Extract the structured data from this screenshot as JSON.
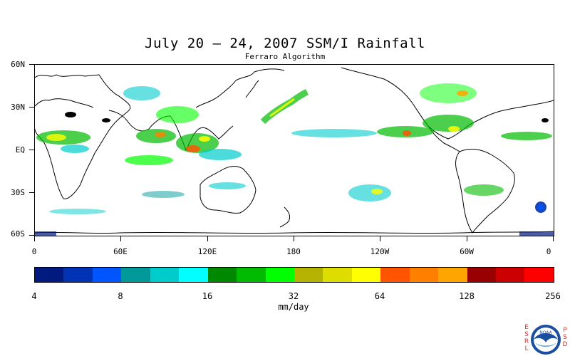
{
  "title": "July 20 – 24, 2007 SSM/I Rainfall",
  "subtitle": "Ferraro Algorithm",
  "lat_labels": [
    "60N",
    "30N",
    "EQ",
    "30S",
    "60S"
  ],
  "lon_labels": [
    "0",
    "60E",
    "120E",
    "180",
    "120W",
    "60W",
    "0"
  ],
  "colorbar": {
    "colors": [
      "#001a80",
      "#0033b3",
      "#0055ff",
      "#009999",
      "#00cccc",
      "#00ffff",
      "#008800",
      "#00bb00",
      "#00ff00",
      "#b3b300",
      "#dddd00",
      "#ffff00",
      "#ff5500",
      "#ff8000",
      "#ffa500",
      "#990000",
      "#cc0000",
      "#ff0000"
    ],
    "level_labels": [
      "4",
      "8",
      "16",
      "32",
      "64",
      "128",
      "256"
    ],
    "units": "mm/day"
  },
  "logo": {
    "left_letters": [
      "E",
      "S",
      "R",
      "L"
    ],
    "right_letters": [
      "P",
      "S",
      "D"
    ],
    "badge_text": "NOAA"
  }
}
